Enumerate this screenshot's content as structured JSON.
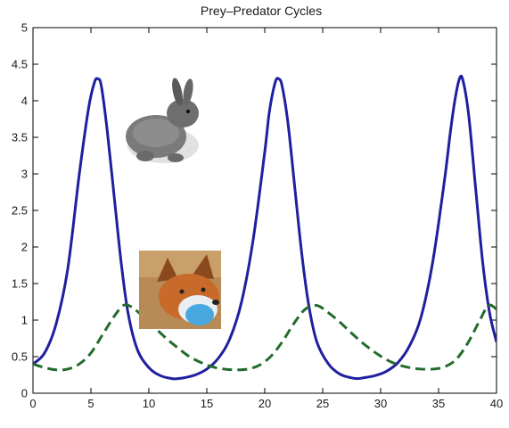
{
  "chart_data": {
    "type": "line",
    "title": "Prey–Predator Cycles",
    "xlim": [
      0,
      40
    ],
    "ylim": [
      0,
      5
    ],
    "xticks": [
      0,
      5,
      10,
      15,
      20,
      25,
      30,
      35,
      40
    ],
    "yticks": [
      0,
      0.5,
      1,
      1.5,
      2,
      2.5,
      3,
      3.5,
      4,
      4.5,
      5
    ],
    "xtick_labels": [
      "0",
      "5",
      "10",
      "15",
      "20",
      "25",
      "30",
      "35",
      "40"
    ],
    "ytick_labels": [
      "0",
      "0.5",
      "1",
      "1.5",
      "2",
      "2.5",
      "3",
      "3.5",
      "4",
      "4.5",
      "5"
    ],
    "grid": false,
    "series": [
      {
        "color": "#1f1fa0",
        "style": "solid",
        "x": [
          0,
          1,
          2,
          3,
          4,
          4.8,
          5.3,
          5.6,
          5.9,
          6.4,
          7,
          7.6,
          8.2,
          9,
          10,
          11,
          12,
          12.5,
          13,
          14,
          15,
          16,
          17,
          18,
          19,
          20,
          20.4,
          20.9,
          21.2,
          21.5,
          22,
          22.6,
          23.2,
          23.8,
          24.5,
          25.5,
          26.5,
          27.5,
          28,
          28.5,
          29.5,
          30.5,
          31.5,
          32.5,
          33.5,
          34.5,
          35.5,
          36,
          36.4,
          36.8,
          37.1,
          37.6,
          38.2,
          38.8,
          39.4,
          40
        ],
        "y": [
          0.4,
          0.55,
          0.95,
          1.7,
          3.0,
          3.9,
          4.25,
          4.3,
          4.2,
          3.6,
          2.7,
          1.8,
          1.1,
          0.6,
          0.35,
          0.24,
          0.2,
          0.2,
          0.21,
          0.25,
          0.33,
          0.48,
          0.75,
          1.25,
          2.1,
          3.3,
          3.85,
          4.25,
          4.3,
          4.2,
          3.7,
          2.8,
          1.9,
          1.2,
          0.7,
          0.4,
          0.26,
          0.21,
          0.2,
          0.21,
          0.24,
          0.3,
          0.42,
          0.65,
          1.05,
          1.8,
          2.9,
          3.55,
          4.0,
          4.3,
          4.28,
          3.8,
          2.8,
          1.8,
          1.1,
          0.7
        ]
      },
      {
        "color": "#236b2c",
        "style": "dashed",
        "x": [
          0,
          1,
          2,
          3,
          4,
          5,
          6,
          7,
          7.8,
          8.5,
          9.5,
          10.5,
          11.5,
          12.5,
          13.5,
          14.5,
          15.5,
          16.5,
          17.5,
          18.5,
          19.5,
          20.5,
          21.5,
          22.5,
          23.5,
          24.5,
          25.5,
          26.5,
          27.5,
          28.5,
          29.5,
          30.5,
          31.5,
          32.5,
          33.5,
          34.5,
          35.5,
          36.5,
          37.5,
          38.5,
          39.3,
          40
        ],
        "y": [
          0.4,
          0.35,
          0.32,
          0.33,
          0.4,
          0.55,
          0.8,
          1.05,
          1.2,
          1.18,
          1.05,
          0.9,
          0.75,
          0.62,
          0.5,
          0.42,
          0.36,
          0.33,
          0.32,
          0.33,
          0.38,
          0.5,
          0.7,
          0.95,
          1.15,
          1.2,
          1.1,
          0.97,
          0.82,
          0.68,
          0.56,
          0.46,
          0.39,
          0.35,
          0.33,
          0.33,
          0.36,
          0.46,
          0.68,
          0.98,
          1.2,
          1.15
        ]
      }
    ]
  },
  "images": {
    "rabbit": "rabbit-photo",
    "fox": "fox-photo"
  }
}
